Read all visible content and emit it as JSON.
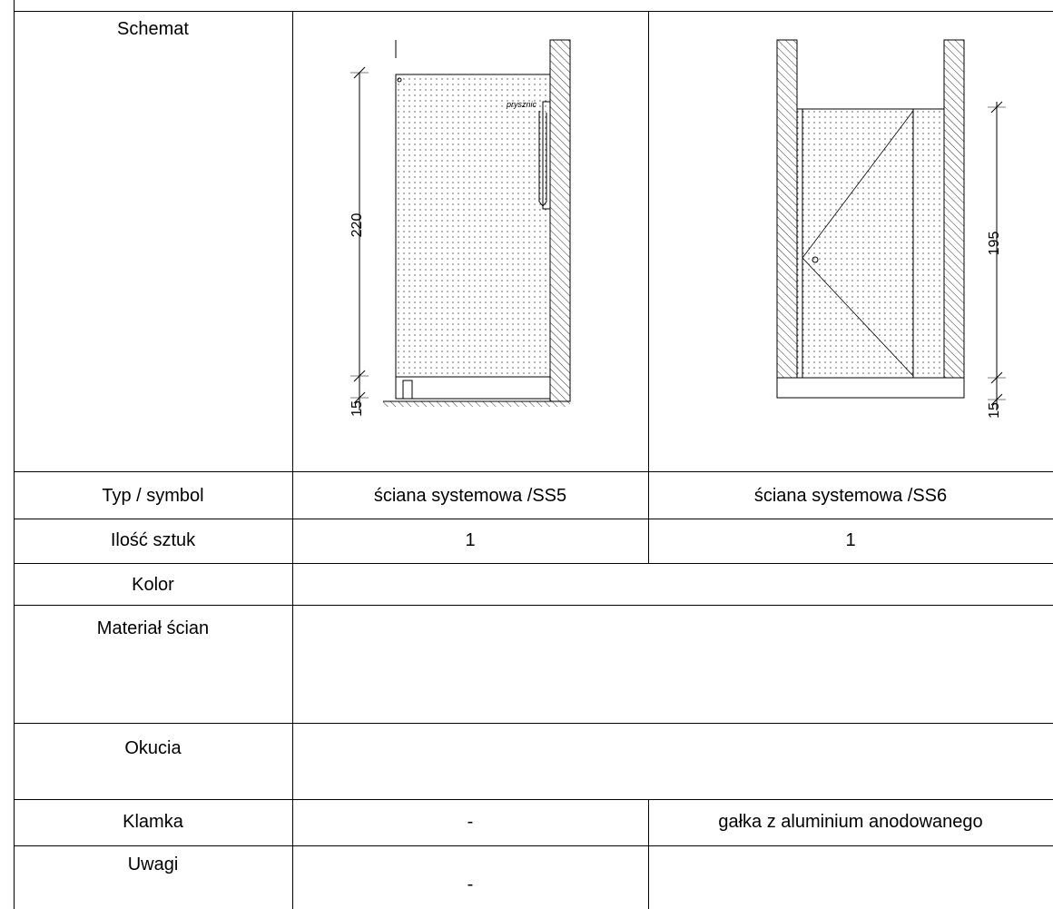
{
  "rows": {
    "schemat": {
      "label": "Schemat"
    },
    "typ_symbol": {
      "label": "Typ / symbol",
      "col1": "ściana systemowa /SS5",
      "col2": "ściana systemowa /SS6"
    },
    "ilosc": {
      "label": "Ilość sztuk",
      "col1": "1",
      "col2": "1"
    },
    "kolor": {
      "label": "Kolor"
    },
    "material": {
      "label": "Materiał ścian"
    },
    "okucia": {
      "label": "Okucia"
    },
    "klamka": {
      "label": "Klamka",
      "col1": "-",
      "col2": "gałka z aluminium anodowanego"
    },
    "uwagi": {
      "label": "Uwagi",
      "col1": "-"
    }
  },
  "drawings": {
    "ss5": {
      "height_dim": "220",
      "base_dim": "15",
      "note": "prysznic"
    },
    "ss6": {
      "height_dim": "195",
      "base_dim": "15"
    }
  }
}
